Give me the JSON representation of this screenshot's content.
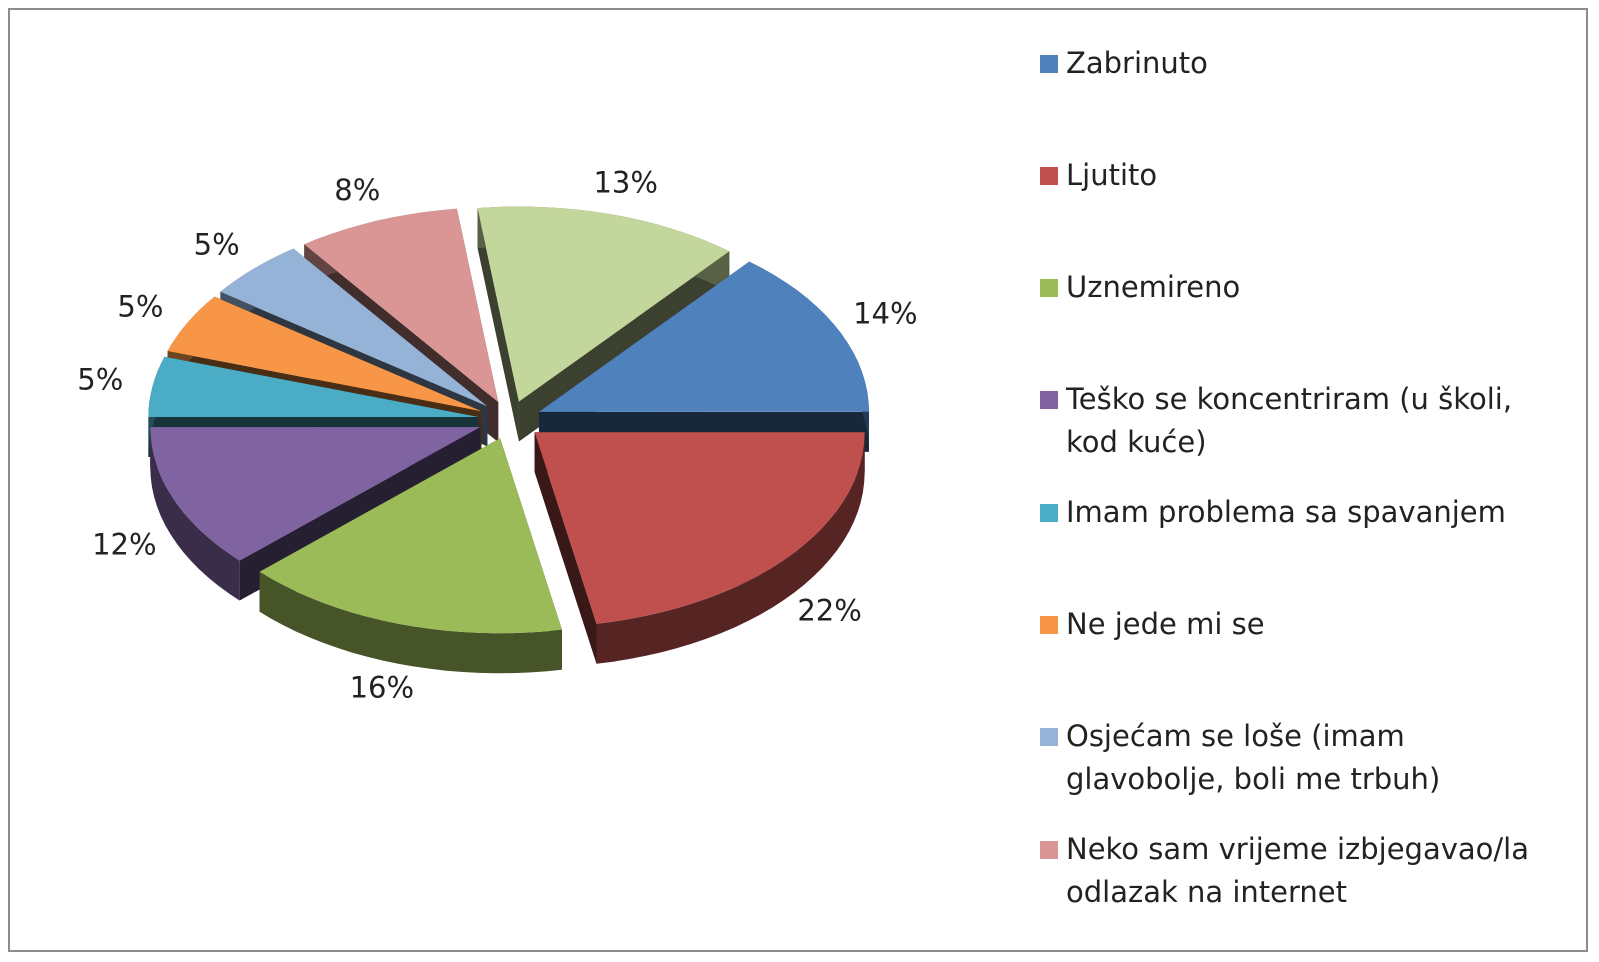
{
  "chart_data": {
    "type": "pie",
    "categories": [
      "Zabrinuto",
      "Ljutito",
      "Uznemireno",
      "Teško se koncentriram (u školi, kod kuće)",
      "Imam problema sa spavanjem",
      "Ne jede mi se",
      "Osjećam se loše (imam glavobolje, boli me trbuh)",
      "Neko sam vrijeme izbjegavao/la odlazak na internet",
      null
    ],
    "values": [
      14,
      22,
      16,
      12,
      5,
      5,
      5,
      8,
      13
    ],
    "value_labels": [
      "14%",
      "22%",
      "16%",
      "12%",
      "5%",
      "5%",
      "5%",
      "8%",
      "13%"
    ],
    "colors": [
      "#4f81bd",
      "#c0504d",
      "#9bbb59",
      "#8064a2",
      "#4bacc6",
      "#f79646",
      "#95b3d7",
      "#d99694",
      "#c3d69b"
    ],
    "legend": "right"
  }
}
